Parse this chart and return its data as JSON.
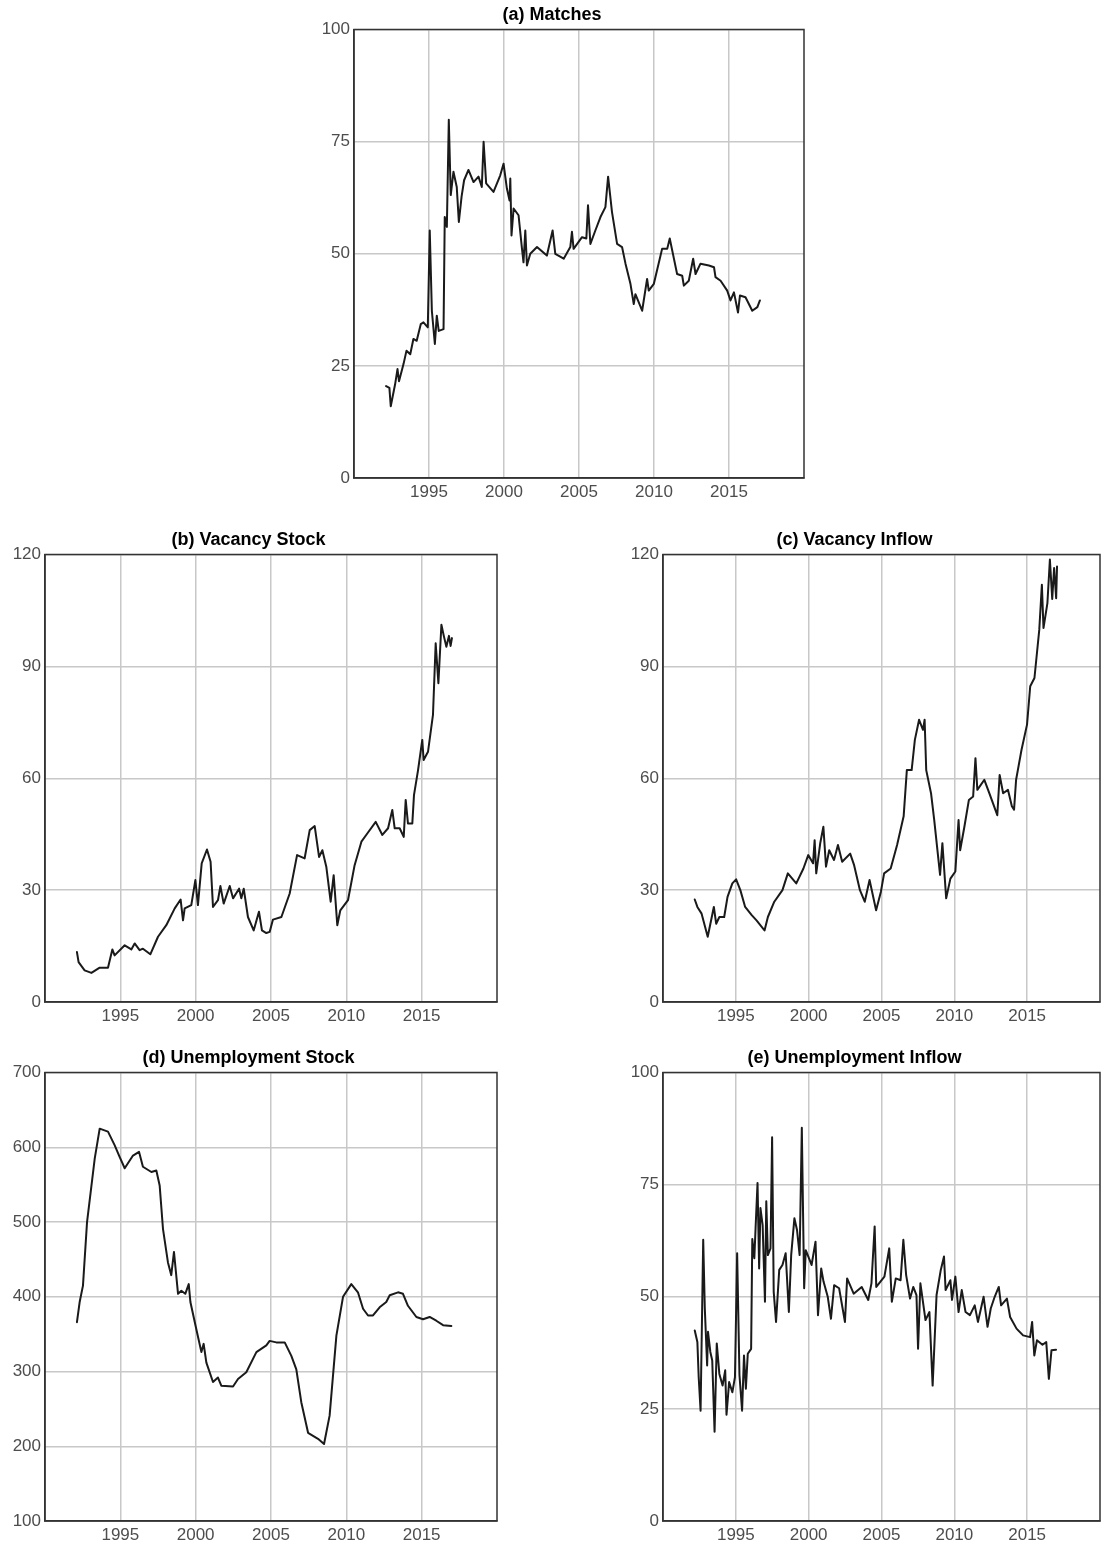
{
  "chart_data": [
    {
      "type": "line",
      "title": "(a) Matches",
      "color": "#1a1a1a",
      "marker": "none",
      "line_style": "solid",
      "grid": true,
      "xlim": [
        1990,
        2020
      ],
      "xticks": [
        1995,
        2000,
        2005,
        2010,
        2015
      ],
      "ylim": [
        0,
        100
      ],
      "yticks": [
        0,
        25,
        50,
        75,
        100
      ],
      "x": [
        1992.14,
        1992.36,
        1992.45,
        1992.74,
        1992.9,
        1993.0,
        1993.3,
        1993.5,
        1993.75,
        1993.96,
        1994.18,
        1994.45,
        1994.63,
        1994.92,
        1995.05,
        1995.19,
        1995.39,
        1995.52,
        1995.65,
        1995.97,
        1996.05,
        1996.19,
        1996.32,
        1996.45,
        1996.63,
        1996.85,
        1996.99,
        1997.17,
        1997.34,
        1997.63,
        1997.97,
        1998.3,
        1998.52,
        1998.64,
        1998.81,
        1999.3,
        1999.75,
        1999.97,
        2000.19,
        2000.37,
        2000.42,
        2000.5,
        2000.64,
        2000.97,
        2001.2,
        2001.3,
        2001.42,
        2001.53,
        2001.75,
        2002.2,
        2002.86,
        2003.24,
        2003.42,
        2003.98,
        2004.42,
        2004.53,
        2004.64,
        2005.2,
        2005.49,
        2005.6,
        2005.76,
        2006.09,
        2006.43,
        2006.76,
        2006.94,
        2007.2,
        2007.54,
        2007.87,
        2008.1,
        2008.43,
        2008.65,
        2008.76,
        2009.21,
        2009.54,
        2009.65,
        2009.99,
        2010.54,
        2010.88,
        2011.05,
        2011.54,
        2011.88,
        2011.99,
        2012.32,
        2012.61,
        2012.77,
        2013.1,
        2013.66,
        2014.0,
        2014.1,
        2014.44,
        2014.88,
        2015.1,
        2015.33,
        2015.6,
        2015.73,
        2016.1,
        2016.55,
        2016.89,
        2017.06
      ],
      "values": [
        20.5,
        20.1,
        16.0,
        20.9,
        24.3,
        21.6,
        25.4,
        28.4,
        27.6,
        31.0,
        30.6,
        34.3,
        34.7,
        33.6,
        55.2,
        37.3,
        29.9,
        36.2,
        32.8,
        33.2,
        58.2,
        56.0,
        79.9,
        63.1,
        68.3,
        64.9,
        57.1,
        62.7,
        66.4,
        68.7,
        66.0,
        67.2,
        64.9,
        75.0,
        65.7,
        63.8,
        67.5,
        70.1,
        64.6,
        61.9,
        66.8,
        54.1,
        60.1,
        58.6,
        51.1,
        48.1,
        55.2,
        47.4,
        50.0,
        51.5,
        49.6,
        55.2,
        50.0,
        48.9,
        51.5,
        54.9,
        51.1,
        53.7,
        53.4,
        60.8,
        52.2,
        55.2,
        58.2,
        60.4,
        67.2,
        59.3,
        52.2,
        51.5,
        47.8,
        43.3,
        38.8,
        41.0,
        37.3,
        44.4,
        41.8,
        43.3,
        51.1,
        51.1,
        53.4,
        45.5,
        45.1,
        42.9,
        44.0,
        48.9,
        45.5,
        47.8,
        47.4,
        47.0,
        44.8,
        44.0,
        41.8,
        39.6,
        41.4,
        36.9,
        40.7,
        40.3,
        37.3,
        38.1,
        39.6
      ]
    },
    {
      "type": "line",
      "title": "(b) Vacancy Stock",
      "color": "#1a1a1a",
      "marker": "none",
      "line_style": "solid",
      "grid": true,
      "xlim": [
        1990,
        2020
      ],
      "xticks": [
        1995,
        2000,
        2005,
        2010,
        2015
      ],
      "ylim": [
        0,
        120
      ],
      "yticks": [
        0,
        30,
        60,
        90,
        120
      ],
      "x": [
        1992.12,
        1992.23,
        1992.63,
        1993.08,
        1993.63,
        1994.18,
        1994.47,
        1994.62,
        1995.29,
        1995.73,
        1995.95,
        1996.28,
        1996.5,
        1996.99,
        1997.5,
        1998.05,
        1998.61,
        1999.0,
        1999.16,
        1999.27,
        1999.71,
        1999.98,
        2000.15,
        2000.4,
        2000.75,
        2000.99,
        2001.15,
        2001.48,
        2001.64,
        2001.86,
        2002.26,
        2002.48,
        2002.88,
        2003.03,
        2003.19,
        2003.47,
        2003.85,
        2004.2,
        2004.4,
        2004.69,
        2004.91,
        2005.13,
        2005.69,
        2006.24,
        2006.73,
        2007.23,
        2007.57,
        2007.9,
        2008.19,
        2008.41,
        2008.67,
        2008.96,
        2009.16,
        2009.4,
        2009.6,
        2010.11,
        2010.55,
        2011.0,
        2011.39,
        2011.95,
        2012.39,
        2012.77,
        2013.05,
        2013.21,
        2013.54,
        2013.81,
        2013.94,
        2014.09,
        2014.38,
        2014.49,
        2014.76,
        2015.04,
        2015.13,
        2015.42,
        2015.75,
        2015.93,
        2016.11,
        2016.31,
        2016.48,
        2016.64,
        2016.81,
        2016.92,
        2017.01
      ],
      "values": [
        13.4,
        10.7,
        8.5,
        7.8,
        9.2,
        9.2,
        14.1,
        12.5,
        15.2,
        14.1,
        15.7,
        13.9,
        14.3,
        12.8,
        17.5,
        20.6,
        25.1,
        27.5,
        21.9,
        25.1,
        26.0,
        32.7,
        26.0,
        37.2,
        40.9,
        37.6,
        25.5,
        27.3,
        31.1,
        26.4,
        31.1,
        27.8,
        30.4,
        27.8,
        30.4,
        22.8,
        19.2,
        24.2,
        19.2,
        18.5,
        18.8,
        22.1,
        22.8,
        29.1,
        39.4,
        38.5,
        46.1,
        47.2,
        38.9,
        40.7,
        36.3,
        26.9,
        34.0,
        20.6,
        24.6,
        27.3,
        36.7,
        43.0,
        45.2,
        48.3,
        44.8,
        46.6,
        51.5,
        46.6,
        46.6,
        44.3,
        54.2,
        47.9,
        47.9,
        55.5,
        62.2,
        70.3,
        64.9,
        67.1,
        77.0,
        96.2,
        85.5,
        101.2,
        98.0,
        95.3,
        98.2,
        95.5,
        97.6
      ]
    },
    {
      "type": "line",
      "title": "(c) Vacancy Inflow",
      "color": "#1a1a1a",
      "marker": "none",
      "line_style": "solid",
      "grid": true,
      "xlim": [
        1990,
        2020
      ],
      "xticks": [
        1995,
        2000,
        2005,
        2010,
        2015
      ],
      "ylim": [
        0,
        120
      ],
      "yticks": [
        0,
        30,
        60,
        90,
        120
      ],
      "x": [
        1992.18,
        1992.36,
        1992.65,
        1993.07,
        1993.49,
        1993.65,
        1993.87,
        1994.2,
        1994.43,
        1994.76,
        1995.02,
        1995.31,
        1995.64,
        1996.09,
        1996.42,
        1996.97,
        1997.2,
        1997.64,
        1998.2,
        1998.57,
        1999.15,
        1999.64,
        1999.97,
        2000.3,
        2000.41,
        2000.52,
        2000.79,
        2001.01,
        2001.19,
        2001.41,
        2001.74,
        2002.01,
        2002.3,
        2002.85,
        2003.12,
        2003.52,
        2003.85,
        2004.18,
        2004.63,
        2004.96,
        2005.18,
        2005.63,
        2006.07,
        2006.52,
        2006.74,
        2007.07,
        2007.29,
        2007.58,
        2007.85,
        2007.96,
        2008.07,
        2008.4,
        2008.62,
        2009.02,
        2009.18,
        2009.44,
        2009.73,
        2010.07,
        2010.29,
        2010.4,
        2010.69,
        2011.0,
        2011.29,
        2011.45,
        2011.58,
        2012.06,
        2012.4,
        2012.95,
        2013.11,
        2013.35,
        2013.68,
        2013.95,
        2014.1,
        2014.24,
        2014.61,
        2014.99,
        2015.21,
        2015.5,
        2015.83,
        2016.01,
        2016.12,
        2016.39,
        2016.56,
        2016.72,
        2016.85,
        2016.99,
        2017.05
      ],
      "values": [
        27.5,
        25.5,
        23.7,
        17.5,
        25.5,
        21.0,
        22.8,
        22.8,
        28.2,
        31.8,
        32.9,
        30.0,
        25.5,
        23.3,
        21.9,
        19.2,
        22.8,
        26.9,
        30.0,
        34.5,
        31.8,
        35.8,
        39.4,
        37.2,
        43.4,
        34.5,
        42.5,
        47.0,
        36.3,
        40.7,
        38.1,
        42.1,
        37.6,
        39.8,
        36.7,
        30.0,
        26.9,
        32.7,
        24.6,
        29.6,
        34.5,
        35.8,
        42.1,
        49.8,
        62.2,
        62.2,
        70.3,
        75.7,
        73.0,
        75.7,
        62.2,
        56.0,
        48.8,
        34.1,
        42.6,
        27.8,
        33.1,
        35.0,
        48.8,
        40.7,
        47.0,
        54.2,
        55.1,
        65.4,
        56.9,
        59.6,
        56.0,
        50.1,
        60.9,
        56.0,
        56.9,
        52.5,
        51.6,
        59.6,
        67.6,
        74.4,
        84.7,
        86.9,
        99.8,
        111.9,
        100.3,
        107.0,
        118.7,
        108.1,
        116.4,
        108.3,
        116.8
      ]
    },
    {
      "type": "line",
      "title": "(d) Unemployment Stock",
      "color": "#1a1a1a",
      "marker": "none",
      "line_style": "solid",
      "grid": true,
      "xlim": [
        1990,
        2020
      ],
      "xticks": [
        1995,
        2000,
        2005,
        2010,
        2015
      ],
      "ylim": [
        100,
        700
      ],
      "yticks": [
        100,
        200,
        300,
        400,
        500,
        600,
        700
      ],
      "x": [
        1992.12,
        1992.3,
        1992.52,
        1992.79,
        1993.3,
        1993.63,
        1994.18,
        1994.62,
        1994.96,
        1995.29,
        1995.84,
        1996.24,
        1996.5,
        1997.06,
        1997.39,
        1997.61,
        1997.83,
        1998.16,
        1998.38,
        1998.56,
        1998.83,
        1999.05,
        1999.31,
        1999.54,
        1999.65,
        2000.04,
        2000.38,
        2000.53,
        2000.71,
        2001.15,
        2001.48,
        2001.7,
        2002.48,
        2002.81,
        2003.36,
        2004.03,
        2004.69,
        2004.91,
        2005.35,
        2005.91,
        2006.35,
        2006.68,
        2007.01,
        2007.46,
        2008.12,
        2008.52,
        2008.89,
        2009.34,
        2009.78,
        2010.33,
        2010.77,
        2011.11,
        2011.44,
        2011.77,
        2012.21,
        2012.65,
        2012.88,
        2013.43,
        2013.76,
        2014.09,
        2014.65,
        2015.09,
        2015.53,
        2015.97,
        2016.42,
        2016.97
      ],
      "values": [
        366,
        393,
        415,
        500,
        585,
        625,
        621,
        603,
        587,
        572,
        589,
        594,
        574,
        567,
        569,
        549,
        491,
        446,
        429,
        460,
        404,
        408,
        404,
        417,
        393,
        357,
        326,
        337,
        312,
        286,
        292,
        281,
        280,
        290,
        299,
        326,
        335,
        341,
        339,
        339,
        321,
        303,
        259,
        218,
        210,
        203,
        241,
        348,
        400,
        417,
        406,
        384,
        375,
        375,
        386,
        393,
        402,
        406,
        404,
        388,
        373,
        370,
        373,
        368,
        362,
        361
      ]
    },
    {
      "type": "line",
      "title": "(e) Unemployment Inflow",
      "color": "#1a1a1a",
      "marker": "none",
      "line_style": "solid",
      "grid": true,
      "xlim": [
        1990,
        2020
      ],
      "xticks": [
        1995,
        2000,
        2005,
        2010,
        2015
      ],
      "ylim": [
        0,
        100
      ],
      "yticks": [
        0,
        25,
        50,
        75,
        100
      ],
      "x": [
        1992.18,
        1992.36,
        1992.45,
        1992.58,
        1992.76,
        1992.87,
        1993.03,
        1993.09,
        1993.25,
        1993.38,
        1993.54,
        1993.69,
        1993.87,
        1994.09,
        1994.27,
        1994.36,
        1994.54,
        1994.76,
        1994.94,
        1995.09,
        1995.25,
        1995.43,
        1995.56,
        1995.69,
        1995.82,
        1996.05,
        1996.13,
        1996.27,
        1996.36,
        1996.49,
        1996.6,
        1996.69,
        1996.84,
        1997.0,
        1997.09,
        1997.2,
        1997.38,
        1997.49,
        1997.6,
        1997.76,
        1997.98,
        1998.2,
        1998.42,
        1998.64,
        1998.8,
        1999.02,
        1999.2,
        1999.38,
        1999.53,
        1999.69,
        1999.8,
        2000.2,
        2000.47,
        2000.64,
        2000.86,
        2001.02,
        2001.31,
        2001.53,
        2001.75,
        2002.09,
        2002.49,
        2002.64,
        2003.09,
        2003.64,
        2004.09,
        2004.31,
        2004.53,
        2004.64,
        2005.2,
        2005.53,
        2005.71,
        2005.98,
        2006.31,
        2006.5,
        2006.69,
        2006.96,
        2007.18,
        2007.4,
        2007.51,
        2007.67,
        2008.02,
        2008.29,
        2008.51,
        2008.78,
        2009.07,
        2009.29,
        2009.4,
        2009.73,
        2009.84,
        2010.07,
        2010.29,
        2010.51,
        2010.77,
        2011.07,
        2011.4,
        2011.62,
        2012.01,
        2012.28,
        2012.5,
        2012.77,
        2013.05,
        2013.21,
        2013.61,
        2013.83,
        2014.27,
        2014.72,
        2015.2,
        2015.34,
        2015.49,
        2015.67,
        2016.05,
        2016.31,
        2016.49,
        2016.67,
        2016.98
      ],
      "values": [
        42.5,
        39.9,
        32.1,
        24.6,
        62.7,
        47.4,
        34.7,
        42.2,
        37.7,
        35.8,
        19.9,
        39.6,
        32.8,
        30.2,
        33.6,
        23.7,
        31.0,
        28.7,
        32.1,
        59.7,
        32.5,
        24.6,
        36.9,
        29.5,
        37.3,
        38.4,
        62.9,
        58.6,
        65.7,
        75.4,
        56.3,
        69.8,
        66.0,
        48.9,
        71.3,
        59.3,
        60.8,
        85.6,
        51.1,
        44.4,
        56.0,
        57.1,
        59.7,
        46.6,
        59.3,
        67.5,
        64.9,
        59.3,
        87.7,
        51.9,
        60.4,
        57.1,
        62.3,
        45.9,
        56.3,
        53.4,
        50.0,
        45.1,
        52.6,
        51.9,
        44.4,
        54.1,
        50.7,
        52.2,
        49.3,
        53.0,
        65.7,
        52.2,
        54.5,
        60.8,
        48.9,
        54.1,
        53.7,
        62.7,
        54.9,
        49.6,
        52.2,
        50.4,
        38.4,
        53.0,
        44.8,
        46.6,
        30.2,
        50.4,
        56.0,
        59.0,
        51.5,
        53.7,
        49.3,
        54.5,
        46.6,
        51.5,
        46.6,
        45.9,
        48.1,
        44.4,
        50.0,
        43.3,
        47.4,
        50.0,
        52.2,
        48.1,
        49.6,
        45.5,
        42.9,
        41.4,
        41.0,
        44.4,
        36.9,
        40.3,
        39.3,
        39.9,
        31.7,
        38.1,
        38.2
      ]
    }
  ]
}
